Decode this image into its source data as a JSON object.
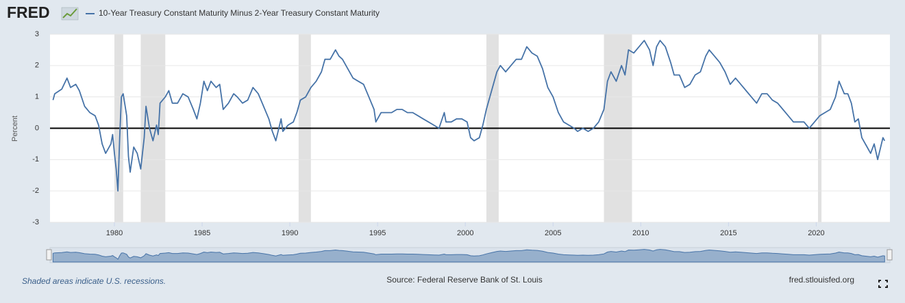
{
  "chart_data": {
    "type": "line",
    "logo": "FRED",
    "ylabel": "Percent",
    "note": "Shaded areas indicate U.S. recessions.",
    "source": "Source: Federal Reserve Bank of St. Louis",
    "site": "fred.stlouisfed.org",
    "xlim": [
      1976.33,
      2024.2
    ],
    "ylim": [
      -3,
      3
    ],
    "xticks": [
      1980,
      1985,
      1990,
      1995,
      2000,
      2005,
      2010,
      2015,
      2020
    ],
    "yticks": [
      -3,
      -2,
      -1,
      0,
      1,
      2,
      3
    ],
    "grid": true,
    "reference_line": 0,
    "recession_color": "#e1e1e1",
    "recessions": [
      [
        1980.0,
        1980.5
      ],
      [
        1981.5,
        1982.9
      ],
      [
        1990.5,
        1991.2
      ],
      [
        2001.2,
        2001.9
      ],
      [
        2007.9,
        2009.5
      ],
      [
        2020.1,
        2020.3
      ]
    ],
    "x": [
      1976.5,
      1976.6,
      1977.0,
      1977.3,
      1977.5,
      1977.8,
      1978.0,
      1978.3,
      1978.6,
      1978.9,
      1979.1,
      1979.3,
      1979.5,
      1979.8,
      1979.9,
      1980.0,
      1980.1,
      1980.2,
      1980.3,
      1980.4,
      1980.5,
      1980.7,
      1980.8,
      1980.9,
      1981.1,
      1981.3,
      1981.5,
      1981.7,
      1981.8,
      1982.0,
      1982.2,
      1982.4,
      1982.5,
      1982.6,
      1982.9,
      1983.1,
      1983.3,
      1983.6,
      1983.9,
      1984.2,
      1984.5,
      1984.7,
      1984.9,
      1985.1,
      1985.3,
      1985.5,
      1985.8,
      1986.0,
      1986.2,
      1986.5,
      1986.8,
      1987.0,
      1987.3,
      1987.6,
      1987.9,
      1988.2,
      1988.5,
      1988.8,
      1989.0,
      1989.2,
      1989.5,
      1989.6,
      1989.9,
      1990.2,
      1990.4,
      1990.6,
      1990.9,
      1991.2,
      1991.5,
      1991.8,
      1992.0,
      1992.3,
      1992.6,
      1992.8,
      1993.0,
      1993.3,
      1993.6,
      1993.9,
      1994.2,
      1994.5,
      1994.8,
      1994.9,
      1995.2,
      1995.5,
      1995.8,
      1996.1,
      1996.4,
      1996.7,
      1997.0,
      1997.3,
      1997.6,
      1997.9,
      1998.2,
      1998.5,
      1998.8,
      1998.9,
      1999.2,
      1999.5,
      1999.8,
      2000.1,
      2000.3,
      2000.5,
      2000.8,
      2001.0,
      2001.2,
      2001.5,
      2001.8,
      2002.0,
      2002.3,
      2002.6,
      2002.9,
      2003.2,
      2003.5,
      2003.8,
      2004.1,
      2004.4,
      2004.7,
      2005.0,
      2005.3,
      2005.6,
      2005.9,
      2006.2,
      2006.4,
      2006.7,
      2007.0,
      2007.3,
      2007.6,
      2007.9,
      2008.1,
      2008.3,
      2008.6,
      2008.9,
      2009.1,
      2009.3,
      2009.6,
      2009.9,
      2010.2,
      2010.5,
      2010.7,
      2010.9,
      2011.1,
      2011.4,
      2011.7,
      2011.9,
      2012.2,
      2012.5,
      2012.8,
      2013.1,
      2013.4,
      2013.7,
      2013.9,
      2014.2,
      2014.5,
      2014.8,
      2015.1,
      2015.4,
      2015.7,
      2016.0,
      2016.3,
      2016.6,
      2016.9,
      2017.2,
      2017.5,
      2017.8,
      2018.1,
      2018.4,
      2018.7,
      2019.0,
      2019.3,
      2019.6,
      2019.9,
      2020.2,
      2020.5,
      2020.8,
      2021.1,
      2021.3,
      2021.6,
      2021.8,
      2022.0,
      2022.2,
      2022.4,
      2022.6,
      2022.9,
      2023.1,
      2023.3,
      2023.5,
      2023.8,
      2023.9
    ],
    "series": [
      {
        "name": "10-Year Treasury Constant Maturity Minus 2-Year Treasury Constant Maturity",
        "color": "#4572a7",
        "values": [
          0.9,
          1.1,
          1.25,
          1.6,
          1.3,
          1.4,
          1.2,
          0.7,
          0.5,
          0.4,
          0.1,
          -0.5,
          -0.8,
          -0.5,
          -0.2,
          -0.8,
          -1.3,
          -2.0,
          -0.3,
          1.0,
          1.1,
          0.4,
          -0.9,
          -1.4,
          -0.6,
          -0.8,
          -1.3,
          -0.3,
          0.7,
          0.0,
          -0.4,
          0.1,
          -0.2,
          0.8,
          1.0,
          1.2,
          0.8,
          0.8,
          1.1,
          1.0,
          0.6,
          0.3,
          0.8,
          1.5,
          1.2,
          1.5,
          1.3,
          1.4,
          0.6,
          0.8,
          1.1,
          1.0,
          0.8,
          0.9,
          1.3,
          1.1,
          0.7,
          0.3,
          -0.1,
          -0.4,
          0.3,
          -0.1,
          0.1,
          0.2,
          0.5,
          0.9,
          1.0,
          1.3,
          1.5,
          1.8,
          2.2,
          2.2,
          2.5,
          2.3,
          2.2,
          1.9,
          1.6,
          1.5,
          1.4,
          1.0,
          0.6,
          0.2,
          0.5,
          0.5,
          0.5,
          0.6,
          0.6,
          0.5,
          0.5,
          0.4,
          0.3,
          0.2,
          0.1,
          0.0,
          0.5,
          0.2,
          0.2,
          0.3,
          0.3,
          0.2,
          -0.3,
          -0.4,
          -0.3,
          0.1,
          0.6,
          1.2,
          1.8,
          2.0,
          1.8,
          2.0,
          2.2,
          2.2,
          2.6,
          2.4,
          2.3,
          1.9,
          1.3,
          1.0,
          0.5,
          0.2,
          0.1,
          0.0,
          -0.1,
          0.0,
          -0.1,
          0.0,
          0.2,
          0.6,
          1.5,
          1.8,
          1.5,
          2.0,
          1.7,
          2.5,
          2.4,
          2.6,
          2.8,
          2.5,
          2.0,
          2.6,
          2.8,
          2.6,
          2.1,
          1.7,
          1.7,
          1.3,
          1.4,
          1.7,
          1.8,
          2.3,
          2.5,
          2.3,
          2.1,
          1.8,
          1.4,
          1.6,
          1.4,
          1.2,
          1.0,
          0.8,
          1.1,
          1.1,
          0.9,
          0.8,
          0.6,
          0.4,
          0.2,
          0.2,
          0.2,
          0.0,
          0.2,
          0.4,
          0.5,
          0.6,
          1.0,
          1.5,
          1.1,
          1.1,
          0.8,
          0.2,
          0.3,
          -0.3,
          -0.6,
          -0.8,
          -0.5,
          -1.0,
          -0.3,
          -0.4
        ]
      }
    ]
  }
}
